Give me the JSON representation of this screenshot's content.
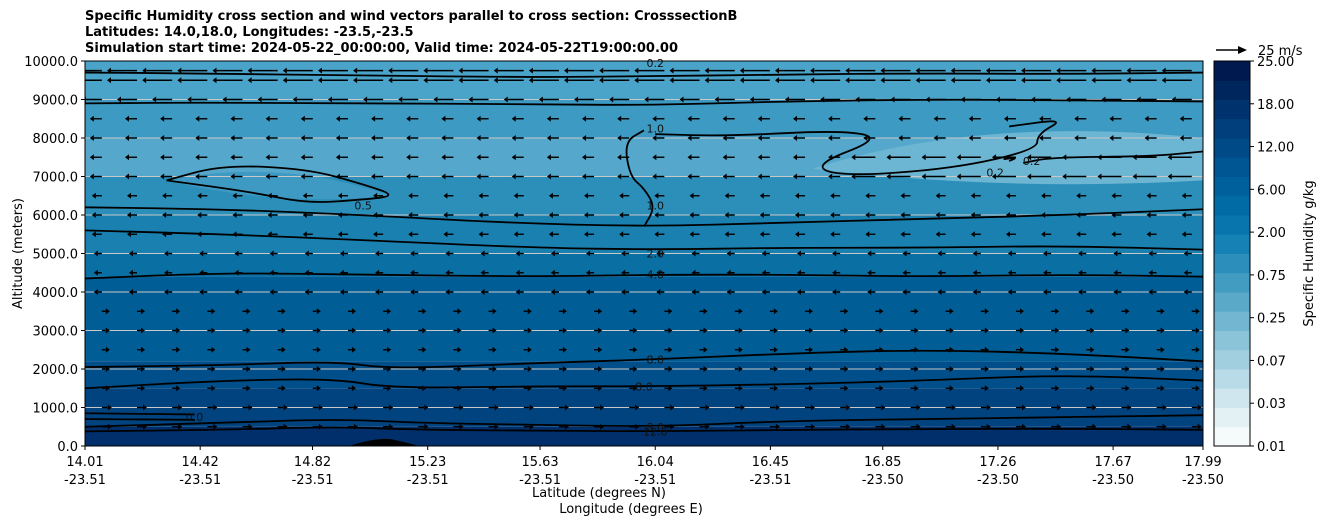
{
  "chart_data": {
    "type": "contourf-crosssection",
    "title_lines": [
      "Specific Humidity cross section and wind vectors parallel to cross section: CrosssectionB",
      "Latitudes: 14.0,18.0, Longitudes: -23.5,-23.5",
      "Simulation start time: 2024-05-22_00:00:00, Valid time: 2024-05-22T19:00:00.00"
    ],
    "ylabel": "Altitude (meters)",
    "xlabel_lat": "Latitude (degrees N)",
    "xlabel_lon": "Longitude (degrees E)",
    "ylim": [
      0,
      10000
    ],
    "y_ticks": [
      "0.0",
      "1000.0",
      "2000.0",
      "3000.0",
      "4000.0",
      "5000.0",
      "6000.0",
      "7000.0",
      "8000.0",
      "9000.0",
      "10000.0"
    ],
    "y_tick_values": [
      0,
      1000,
      2000,
      3000,
      4000,
      5000,
      6000,
      7000,
      8000,
      9000,
      10000
    ],
    "x_ticks_lat": [
      "14.01",
      "14.42",
      "14.82",
      "15.23",
      "15.63",
      "16.04",
      "16.45",
      "16.85",
      "17.26",
      "17.67",
      "17.99"
    ],
    "x_ticks_lon": [
      "-23.51",
      "-23.51",
      "-23.51",
      "-23.51",
      "-23.51",
      "-23.51",
      "-23.51",
      "-23.50",
      "-23.50",
      "-23.50",
      "-23.50"
    ],
    "x_tick_values": [
      14.01,
      14.42,
      14.82,
      15.23,
      15.63,
      16.04,
      16.45,
      16.85,
      17.26,
      17.67,
      17.99
    ],
    "xlim": [
      14.01,
      17.99
    ],
    "colorbar": {
      "label": "Specific Humidity g/kg",
      "tick_labels": [
        "0.01",
        "0.03",
        "0.07",
        "0.25",
        "0.75",
        "2.00",
        "6.00",
        "12.00",
        "18.00",
        "25.00"
      ],
      "levels": [
        0.01,
        0.02,
        0.03,
        0.05,
        0.07,
        0.1,
        0.25,
        0.5,
        0.75,
        1.0,
        2.0,
        4.0,
        6.0,
        8.0,
        12.0,
        15.0,
        18.0,
        20.0,
        25.0
      ]
    },
    "quiver_key": "25 m/s",
    "contour_labels": [
      {
        "text": "0.2",
        "lat": 16.04,
        "alt": 9950
      },
      {
        "text": "1.0",
        "lat": 16.04,
        "alt": 8250
      },
      {
        "text": "1.0",
        "lat": 16.04,
        "alt": 6250
      },
      {
        "text": "0.5",
        "lat": 15.0,
        "alt": 6250
      },
      {
        "text": "0.2",
        "lat": 17.25,
        "alt": 7100
      },
      {
        "text": "0.2",
        "lat": 17.38,
        "alt": 7400
      },
      {
        "text": "2.0",
        "lat": 16.04,
        "alt": 5000
      },
      {
        "text": "4.0",
        "lat": 16.04,
        "alt": 4450
      },
      {
        "text": "8.0",
        "lat": 16.04,
        "alt": 2250
      },
      {
        "text": "8.0",
        "lat": 16.0,
        "alt": 1550
      },
      {
        "text": "8.0",
        "lat": 16.04,
        "alt": 500
      },
      {
        "text": "12.0",
        "lat": 16.04,
        "alt": 380
      },
      {
        "text": "0.0",
        "lat": 14.4,
        "alt": 750
      }
    ],
    "contours": [
      {
        "name": "contour-0.2-top",
        "points": [
          [
            14.01,
            9700
          ],
          [
            14.4,
            9680
          ],
          [
            15.0,
            9620
          ],
          [
            15.6,
            9580
          ],
          [
            16.0,
            9600
          ],
          [
            16.5,
            9650
          ],
          [
            17.0,
            9680
          ],
          [
            17.5,
            9660
          ],
          [
            17.99,
            9700
          ]
        ]
      },
      {
        "name": "contour-1.0-upper",
        "points": [
          [
            14.01,
            8900
          ],
          [
            14.4,
            8920
          ],
          [
            15.0,
            8900
          ],
          [
            15.6,
            8880
          ],
          [
            16.0,
            8850
          ],
          [
            16.5,
            8950
          ],
          [
            17.0,
            9000
          ],
          [
            17.5,
            8980
          ],
          [
            17.99,
            8950
          ]
        ]
      },
      {
        "name": "contour-1.0-lower",
        "points": [
          [
            16.04,
            8100
          ],
          [
            16.3,
            8050
          ],
          [
            16.7,
            8200
          ],
          [
            16.85,
            8000
          ],
          [
            16.6,
            7300
          ],
          [
            16.7,
            7000
          ],
          [
            17.1,
            7200
          ],
          [
            17.4,
            7700
          ],
          [
            17.4,
            8100
          ],
          [
            17.5,
            8500
          ],
          [
            17.3,
            8300
          ]
        ]
      },
      {
        "name": "contour-1.0-vert",
        "points": [
          [
            16.0,
            8200
          ],
          [
            15.93,
            7900
          ],
          [
            15.95,
            7000
          ],
          [
            16.0,
            6700
          ],
          [
            16.04,
            6200
          ],
          [
            16.0,
            5700
          ]
        ]
      },
      {
        "name": "contour-0.5",
        "points": [
          [
            14.3,
            6900
          ],
          [
            14.5,
            7300
          ],
          [
            14.8,
            7200
          ],
          [
            15.0,
            6800
          ],
          [
            15.12,
            6500
          ],
          [
            15.0,
            6400
          ],
          [
            14.8,
            6300
          ],
          [
            14.6,
            6600
          ],
          [
            14.3,
            6900
          ]
        ]
      },
      {
        "name": "contour-0.2-right",
        "points": [
          [
            17.35,
            7350
          ],
          [
            17.45,
            7500
          ],
          [
            17.8,
            7520
          ],
          [
            17.99,
            7650
          ]
        ]
      },
      {
        "name": "contour-0.2-small",
        "points": [
          [
            17.28,
            7450
          ],
          [
            17.33,
            7500
          ],
          [
            17.3,
            7400
          ]
        ]
      },
      {
        "name": "contour-2.0",
        "points": [
          [
            14.01,
            6200
          ],
          [
            14.5,
            6150
          ],
          [
            15.0,
            6000
          ],
          [
            15.5,
            5800
          ],
          [
            16.0,
            5700
          ],
          [
            16.5,
            5800
          ],
          [
            17.0,
            5900
          ],
          [
            17.5,
            6000
          ],
          [
            17.99,
            6150
          ]
        ]
      },
      {
        "name": "contour-2.0b",
        "points": [
          [
            14.01,
            5600
          ],
          [
            14.5,
            5500
          ],
          [
            15.0,
            5350
          ],
          [
            15.6,
            5150
          ],
          [
            16.04,
            5100
          ],
          [
            16.5,
            5150
          ],
          [
            17.0,
            5150
          ],
          [
            17.5,
            5200
          ],
          [
            17.99,
            5100
          ]
        ]
      },
      {
        "name": "contour-4.0",
        "points": [
          [
            14.01,
            4350
          ],
          [
            14.5,
            4500
          ],
          [
            15.0,
            4450
          ],
          [
            15.6,
            4400
          ],
          [
            16.04,
            4450
          ],
          [
            16.5,
            4450
          ],
          [
            17.0,
            4400
          ],
          [
            17.5,
            4450
          ],
          [
            17.99,
            4400
          ]
        ]
      },
      {
        "name": "contour-8.0-upper",
        "points": [
          [
            14.01,
            2050
          ],
          [
            14.5,
            2100
          ],
          [
            14.9,
            2200
          ],
          [
            15.1,
            2000
          ],
          [
            15.6,
            2150
          ],
          [
            16.04,
            2250
          ],
          [
            16.5,
            2400
          ],
          [
            17.0,
            2500
          ],
          [
            17.5,
            2400
          ],
          [
            17.99,
            2200
          ]
        ]
      },
      {
        "name": "contour-8.0-mid",
        "points": [
          [
            14.01,
            1500
          ],
          [
            14.5,
            1700
          ],
          [
            14.9,
            1750
          ],
          [
            15.1,
            1500
          ],
          [
            15.6,
            1550
          ],
          [
            16.0,
            1550
          ],
          [
            16.5,
            1600
          ],
          [
            17.0,
            1700
          ],
          [
            17.5,
            1850
          ],
          [
            17.99,
            1700
          ]
        ]
      },
      {
        "name": "contour-8.0-low",
        "points": [
          [
            14.01,
            500
          ],
          [
            14.5,
            600
          ],
          [
            14.9,
            700
          ],
          [
            15.2,
            600
          ],
          [
            15.6,
            550
          ],
          [
            16.04,
            500
          ],
          [
            16.5,
            650
          ],
          [
            17.0,
            700
          ],
          [
            17.5,
            750
          ],
          [
            17.99,
            800
          ]
        ]
      },
      {
        "name": "contour-12.0",
        "points": [
          [
            14.01,
            380
          ],
          [
            14.5,
            420
          ],
          [
            14.9,
            500
          ],
          [
            15.2,
            420
          ],
          [
            15.6,
            400
          ],
          [
            16.04,
            380
          ],
          [
            16.5,
            420
          ],
          [
            17.0,
            440
          ],
          [
            17.5,
            450
          ],
          [
            17.99,
            420
          ]
        ]
      },
      {
        "name": "contour-0.0-a",
        "points": [
          [
            14.01,
            850
          ],
          [
            14.4,
            820
          ]
        ]
      },
      {
        "name": "contour-0.0-b",
        "points": [
          [
            14.01,
            700
          ],
          [
            14.4,
            680
          ]
        ]
      }
    ]
  }
}
